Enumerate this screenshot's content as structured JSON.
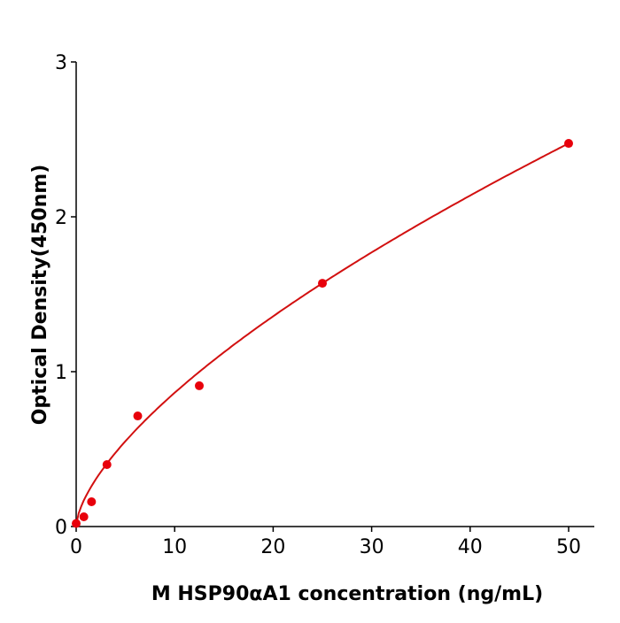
{
  "chart_data": {
    "type": "scatter",
    "xlabel": "M  HSP90αA1 concentration (ng/mL)",
    "ylabel": "Optical Density(450nm)",
    "xlim": [
      0,
      52.6
    ],
    "ylim": [
      0,
      3
    ],
    "xticks": [
      0,
      10,
      20,
      30,
      40,
      50
    ],
    "yticks": [
      0,
      1,
      2,
      3
    ],
    "grid": false,
    "color": "#e8000b",
    "line_color": "#d21010",
    "points": [
      {
        "x": 0,
        "y": 0.02
      },
      {
        "x": 0.78,
        "y": 0.063
      },
      {
        "x": 1.56,
        "y": 0.16
      },
      {
        "x": 3.125,
        "y": 0.4
      },
      {
        "x": 6.25,
        "y": 0.714
      },
      {
        "x": 12.5,
        "y": 0.909
      },
      {
        "x": 25,
        "y": 1.571
      },
      {
        "x": 50,
        "y": 2.474
      }
    ],
    "fit_curve": "smooth fitted curve through standards"
  }
}
